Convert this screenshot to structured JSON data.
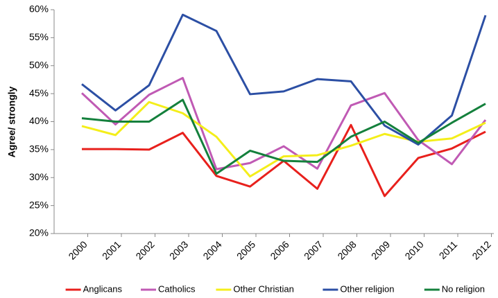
{
  "chart_data": {
    "type": "line",
    "y_label": "Agree/ strongly",
    "categories": [
      "2000",
      "2001",
      "2002",
      "2003",
      "2004",
      "2005",
      "2006",
      "2007",
      "2008",
      "2009",
      "2010",
      "2011",
      "2012"
    ],
    "series": [
      {
        "name": "Anglicans",
        "color": "#e8201c",
        "values": [
          35.1,
          35.1,
          35,
          38,
          30.3,
          28.4,
          33,
          28,
          39.4,
          26.7,
          33.5,
          35.2,
          38.2
        ]
      },
      {
        "name": "Catholics",
        "color": "#c05ab4",
        "values": [
          45.1,
          39.5,
          44.8,
          47.8,
          31.5,
          32.6,
          35.6,
          31.6,
          42.9,
          45.1,
          36.7,
          32.4,
          40.3
        ]
      },
      {
        "name": "Other Christian",
        "color": "#f4ee1a",
        "values": [
          39.2,
          37.6,
          43.5,
          41.5,
          37.3,
          30.2,
          33.8,
          34,
          35.7,
          37.8,
          36.4,
          37,
          39.8
        ]
      },
      {
        "name": "Other religion",
        "color": "#2c4fa4",
        "values": [
          46.7,
          42,
          46.5,
          59.1,
          56.2,
          44.9,
          45.4,
          47.6,
          47.2,
          39.3,
          35.9,
          41.1,
          59
        ]
      },
      {
        "name": "No religion",
        "color": "#14803c",
        "values": [
          40.6,
          40,
          40,
          43.9,
          30.7,
          34.8,
          33,
          32.8,
          37.3,
          40,
          36.2,
          39.8,
          43.2
        ]
      }
    ],
    "ylim": [
      20,
      60
    ],
    "yticks": [
      {
        "value": 20,
        "label": "20%"
      },
      {
        "value": 25,
        "label": "25%"
      },
      {
        "value": 30,
        "label": "30%"
      },
      {
        "value": 35,
        "label": "35%"
      },
      {
        "value": 40,
        "label": "40%"
      },
      {
        "value": 45,
        "label": "45%"
      },
      {
        "value": 50,
        "label": "50%"
      },
      {
        "value": 55,
        "label": "55%"
      },
      {
        "value": 60,
        "label": "60%"
      }
    ],
    "grid": false,
    "legend": "bottom"
  }
}
